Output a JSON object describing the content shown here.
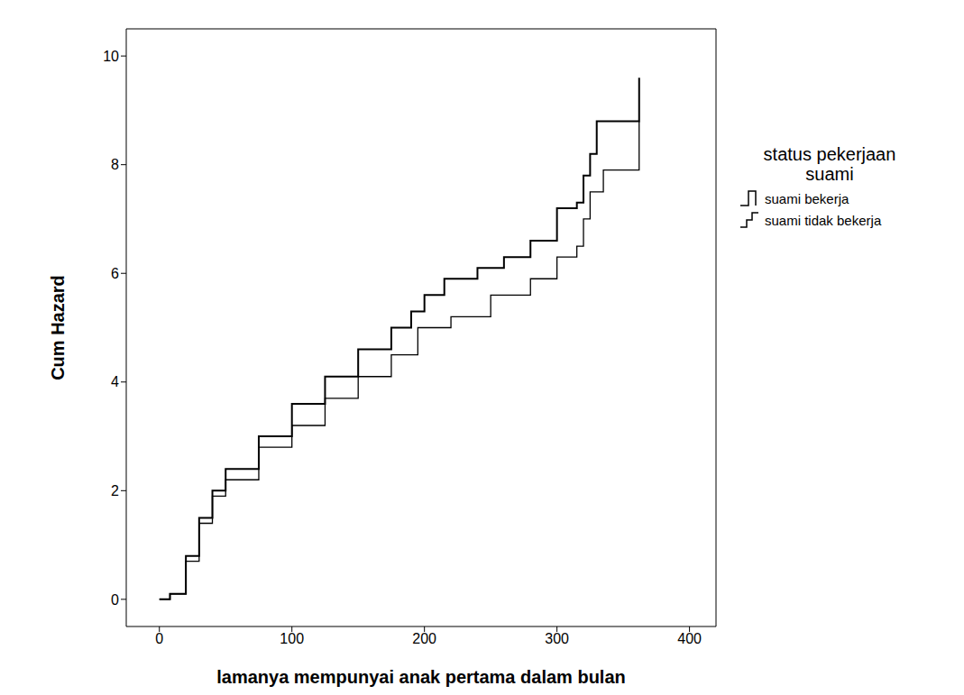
{
  "chart_data": {
    "type": "line",
    "x_label": "lamanya mempunyai anak pertama dalam bulan",
    "y_label": "Cum Hazard",
    "legend_title": "status pekerjaan suami",
    "legend": "right",
    "grid": false,
    "xlim": [
      -25,
      420
    ],
    "xticks": [
      0,
      100,
      200,
      300,
      400
    ],
    "ylim": [
      -0.5,
      10.5
    ],
    "yticks": [
      0,
      2,
      4,
      6,
      8,
      10
    ],
    "series": [
      {
        "name": "suami bekerja",
        "color": "#000000",
        "line_style": "step",
        "x": [
          0,
          8,
          20,
          30,
          40,
          50,
          75,
          100,
          125,
          150,
          175,
          190,
          200,
          215,
          240,
          260,
          280,
          300,
          315,
          320,
          325,
          330,
          362
        ],
        "values": [
          0,
          0.1,
          0.8,
          1.5,
          2.0,
          2.4,
          3.0,
          3.6,
          4.1,
          4.6,
          5.0,
          5.3,
          5.6,
          5.9,
          6.1,
          6.3,
          6.6,
          7.2,
          7.3,
          7.8,
          8.2,
          8.8,
          9.6
        ]
      },
      {
        "name": "suami tidak bekerja",
        "color": "#000000",
        "line_style": "step",
        "x": [
          0,
          8,
          20,
          30,
          40,
          50,
          75,
          100,
          125,
          150,
          175,
          195,
          220,
          250,
          280,
          300,
          315,
          320,
          325,
          335,
          362
        ],
        "values": [
          0,
          0.1,
          0.7,
          1.4,
          1.9,
          2.2,
          2.8,
          3.2,
          3.7,
          4.1,
          4.5,
          5.0,
          5.2,
          5.6,
          5.9,
          6.3,
          6.5,
          7.0,
          7.5,
          7.9,
          8.8
        ]
      }
    ]
  }
}
